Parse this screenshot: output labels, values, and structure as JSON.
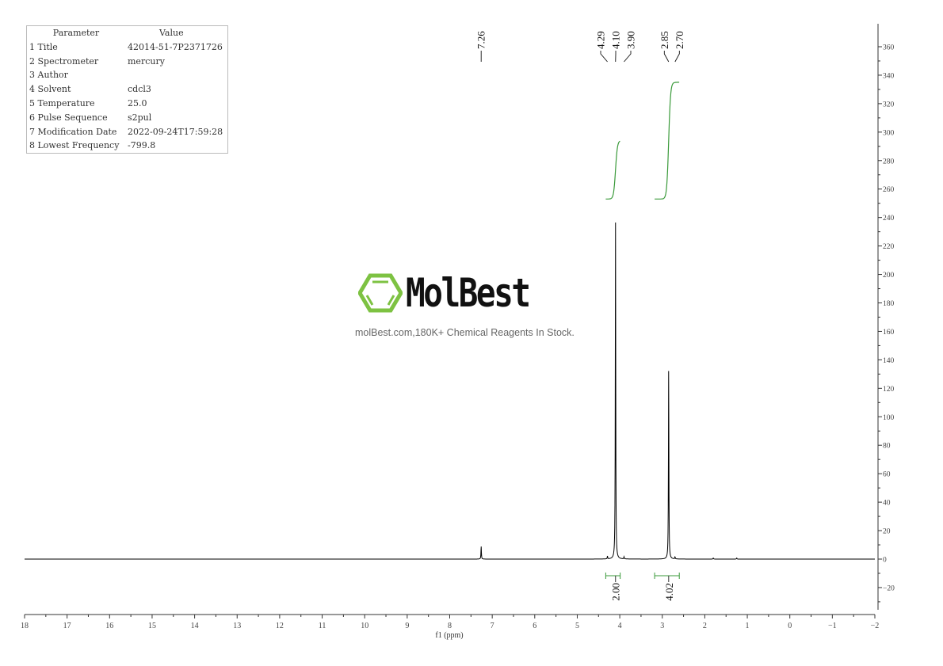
{
  "parameters": {
    "header": [
      "Parameter",
      "Value"
    ],
    "rows": [
      [
        "1 Title",
        "42014-51-7P2371726"
      ],
      [
        "2 Spectrometer",
        "mercury"
      ],
      [
        "3 Author",
        ""
      ],
      [
        "4 Solvent",
        "cdcl3"
      ],
      [
        "5 Temperature",
        "25.0"
      ],
      [
        "6 Pulse Sequence",
        "s2pul"
      ],
      [
        "7 Modification Date",
        "2022-09-24T17:59:28"
      ],
      [
        "8 Lowest Frequency",
        "-799.8"
      ]
    ]
  },
  "watermark": {
    "brand": "MolBest",
    "tagline": "molBest.com,180K+ Chemical Reagents In Stock.",
    "logo_color": "#7dc242"
  },
  "chart_data": {
    "type": "line",
    "xlabel": "f1 (ppm)",
    "ylabel": "",
    "xlim": [
      18,
      -2
    ],
    "ylim": [
      -35,
      365
    ],
    "x_ticks": [
      18,
      17,
      16,
      15,
      14,
      13,
      12,
      11,
      10,
      9,
      8,
      7,
      6,
      5,
      4,
      3,
      2,
      1,
      0,
      -1,
      -2
    ],
    "y_ticks": [
      -20,
      0,
      20,
      40,
      60,
      80,
      100,
      120,
      140,
      160,
      180,
      200,
      220,
      240,
      260,
      280,
      300,
      320,
      340,
      360
    ],
    "y_axis_side": "right",
    "grid": false,
    "line_color": "#000000",
    "integral_color": "#3a9a3a",
    "peaks": [
      {
        "ppm": 7.26,
        "height": 9
      },
      {
        "ppm": 4.29,
        "height": 2
      },
      {
        "ppm": 4.1,
        "height": 237
      },
      {
        "ppm": 3.9,
        "height": 1.5
      },
      {
        "ppm": 2.85,
        "height": 135
      },
      {
        "ppm": 2.7,
        "height": 1.5
      },
      {
        "ppm": 1.8,
        "height": 0.8
      },
      {
        "ppm": 1.25,
        "height": 0.8
      }
    ],
    "peak_labels": [
      "7.26",
      "4.29",
      "4.10",
      "3.90",
      "2.85",
      "2.70"
    ],
    "integrals": [
      {
        "from": 4.33,
        "to": 3.99,
        "value": "2.00",
        "curve_start": 253,
        "curve_end": 294
      },
      {
        "from": 3.18,
        "to": 2.6,
        "value": "4.02",
        "curve_start": 253,
        "curve_end": 335
      }
    ]
  }
}
